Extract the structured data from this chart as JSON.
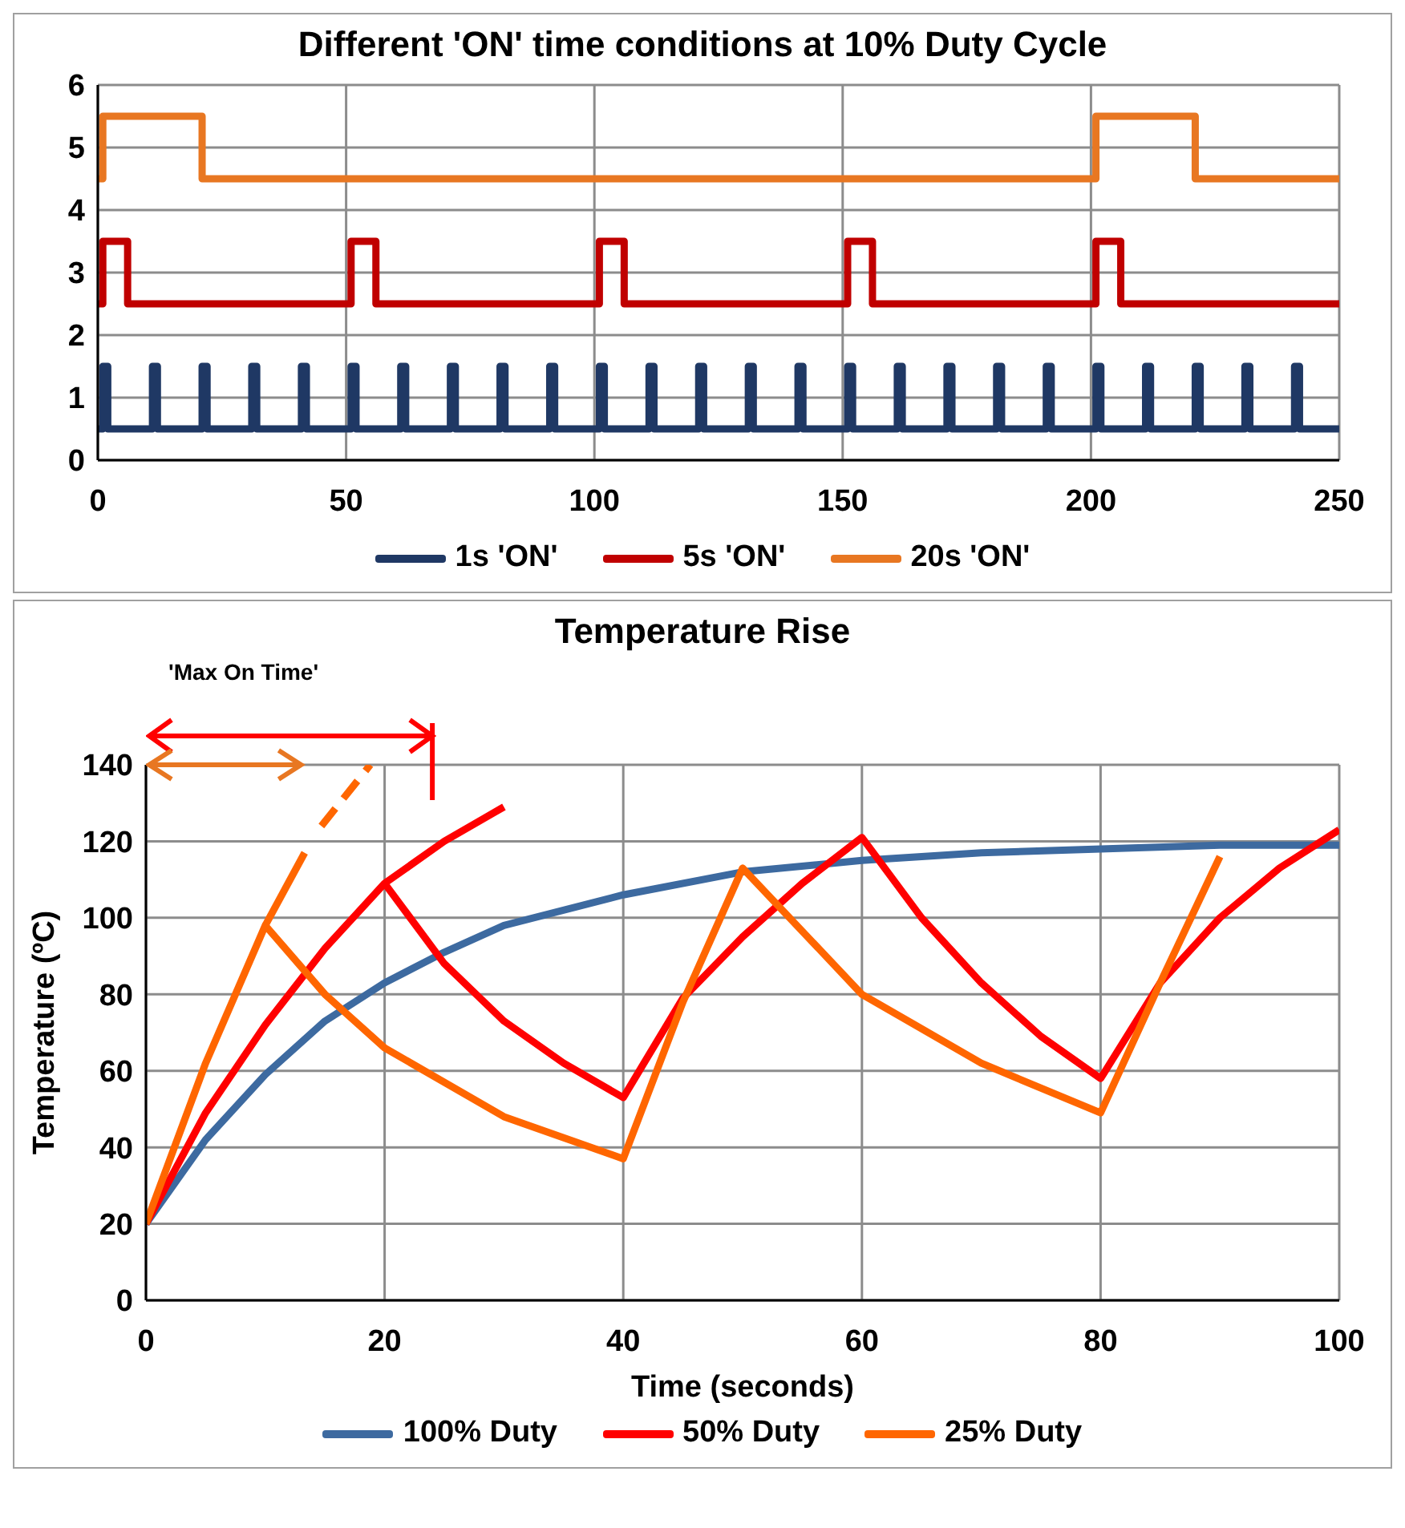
{
  "chart_data": [
    {
      "type": "step",
      "title": "Different 'ON' time conditions at 10% Duty Cycle",
      "xlim": [
        0,
        250
      ],
      "xticks": [
        0,
        50,
        100,
        150,
        200,
        250
      ],
      "ylim": [
        0,
        6
      ],
      "yticks": [
        0,
        1,
        2,
        3,
        4,
        5,
        6
      ],
      "grid": true,
      "legend": "bottom",
      "series": [
        {
          "name": "1s 'ON'",
          "color": "#1f3864",
          "x": [
            0,
            1,
            2,
            11,
            12,
            21,
            22,
            31,
            32,
            41,
            42,
            51,
            52,
            61,
            62,
            71,
            72,
            81,
            82,
            91,
            92,
            101,
            102,
            111,
            112,
            121,
            122,
            131,
            132,
            141,
            142,
            151,
            152,
            161,
            162,
            171,
            172,
            181,
            182,
            191,
            192,
            201,
            202,
            211,
            212,
            221,
            222,
            231,
            232,
            241,
            242,
            250
          ],
          "values": [
            0.5,
            1.5,
            0.5,
            1.5,
            0.5,
            1.5,
            0.5,
            1.5,
            0.5,
            1.5,
            0.5,
            1.5,
            0.5,
            1.5,
            0.5,
            1.5,
            0.5,
            1.5,
            0.5,
            1.5,
            0.5,
            1.5,
            0.5,
            1.5,
            0.5,
            1.5,
            0.5,
            1.5,
            0.5,
            1.5,
            0.5,
            1.5,
            0.5,
            1.5,
            0.5,
            1.5,
            0.5,
            1.5,
            0.5,
            1.5,
            0.5,
            1.5,
            0.5,
            1.5,
            0.5,
            1.5,
            0.5,
            1.5,
            0.5,
            1.5,
            0.5,
            0.5
          ]
        },
        {
          "name": "5s 'ON'",
          "color": "#c00000",
          "x": [
            0,
            1,
            6,
            51,
            56,
            101,
            106,
            151,
            156,
            201,
            206,
            250
          ],
          "values": [
            2.5,
            3.5,
            2.5,
            3.5,
            2.5,
            3.5,
            2.5,
            3.5,
            2.5,
            3.5,
            2.5,
            2.5
          ]
        },
        {
          "name": "20s 'ON'",
          "color": "#e87722",
          "x": [
            0,
            1,
            21,
            201,
            221,
            250
          ],
          "values": [
            4.5,
            5.5,
            4.5,
            5.5,
            4.5,
            4.5
          ]
        }
      ]
    },
    {
      "type": "line",
      "title": "Temperature Rise",
      "xlabel": "Time (seconds)",
      "ylabel": "Temperature (ºC)",
      "annotations": [
        "'Max On Time'"
      ],
      "xlim": [
        0,
        100
      ],
      "xticks": [
        0,
        20,
        40,
        60,
        80,
        100
      ],
      "ylim": [
        0,
        140
      ],
      "yticks": [
        0,
        20,
        40,
        60,
        80,
        100,
        120,
        140
      ],
      "grid": true,
      "legend": "bottom",
      "series": [
        {
          "name": "100% Duty",
          "color": "#3d6aa0",
          "x": [
            0,
            5,
            10,
            15,
            20,
            25,
            30,
            40,
            50,
            60,
            70,
            80,
            90,
            100
          ],
          "values": [
            20,
            42,
            59,
            73,
            83,
            91,
            98,
            106,
            112,
            115,
            117,
            118,
            119,
            119
          ]
        },
        {
          "name": "50% Duty",
          "color": "#ff0000",
          "x": [
            0,
            5,
            10,
            15,
            20,
            25,
            30,
            35,
            40,
            45,
            50,
            55,
            60,
            65,
            70,
            75,
            80,
            85,
            90,
            95,
            100
          ],
          "values": [
            20,
            49,
            72,
            92,
            109,
            88,
            73,
            62,
            53,
            79,
            95,
            109,
            121,
            100,
            83,
            69,
            58,
            83,
            100,
            113,
            123
          ]
        },
        {
          "name": "25% Duty",
          "color": "#ff6600",
          "x": [
            0,
            5,
            10,
            15,
            20,
            30,
            40,
            45,
            50,
            60,
            70,
            80,
            85,
            90
          ],
          "values": [
            20,
            62,
            98,
            80,
            66,
            48,
            37,
            78,
            113,
            80,
            62,
            49,
            83,
            116
          ]
        },
        {
          "color": "#ff0000",
          "x": [
            20,
            25,
            30
          ],
          "values": [
            109,
            120,
            129
          ]
        },
        {
          "color": "#ff6600",
          "x": [
            10,
            13.3
          ],
          "values": [
            98,
            117
          ]
        },
        {
          "color": "#ff6600",
          "line_style": "dashed",
          "x": [
            14.7,
            18.8
          ],
          "values": [
            124,
            140
          ]
        }
      ]
    }
  ]
}
